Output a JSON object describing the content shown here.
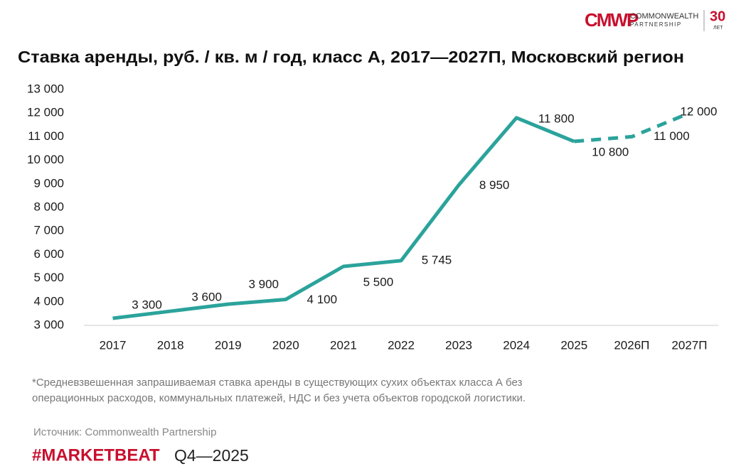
{
  "logo": {
    "mark": "CMWP",
    "line1": "COMMONWEALTH",
    "line2": "PARTNERSHIP",
    "years": "30",
    "years_label": "ЛЕТ"
  },
  "chart_data": {
    "type": "line",
    "title": "Ставка аренды, руб. / кв. м / год, класс А, 2017—2027П, Московский регион",
    "categories": [
      "2017",
      "2018",
      "2019",
      "2020",
      "2021",
      "2022",
      "2023",
      "2024",
      "2025",
      "2026П",
      "2027П"
    ],
    "values": [
      3300,
      3600,
      3900,
      4100,
      5500,
      5745,
      8950,
      11800,
      10800,
      11000,
      12000
    ],
    "value_labels": [
      "3 300",
      "3 600",
      "3 900",
      "4 100",
      "5 500",
      "5 745",
      "8 950",
      "11 800",
      "10 800",
      "11 000",
      "12 000"
    ],
    "color": "#2ba39b",
    "dashed_from_index": 8,
    "ylim": [
      3000,
      13000
    ],
    "yticks": [
      {
        "value": 3000,
        "label": "3 000"
      },
      {
        "value": 4000,
        "label": "4 000"
      },
      {
        "value": 5000,
        "label": "5 000"
      },
      {
        "value": 6000,
        "label": "6 000"
      },
      {
        "value": 7000,
        "label": "7 000"
      },
      {
        "value": 8000,
        "label": "8 000"
      },
      {
        "value": 9000,
        "label": "9 000"
      },
      {
        "value": 10000,
        "label": "10 000"
      },
      {
        "value": 11000,
        "label": "11 000"
      },
      {
        "value": 12000,
        "label": "12 000"
      },
      {
        "value": 13000,
        "label": "13 000"
      }
    ],
    "grid": false
  },
  "footnote": [
    "*Средневзвешенная запрашиваемая ставка аренды в существующих сухих объектах класса А без",
    "операционных расходов, коммунальных платежей, НДС и без учета объектов городской логистики."
  ],
  "source": "Источник: Commonwealth Partnership",
  "brand": "#MARKETBEAT",
  "period": "Q4—2025"
}
